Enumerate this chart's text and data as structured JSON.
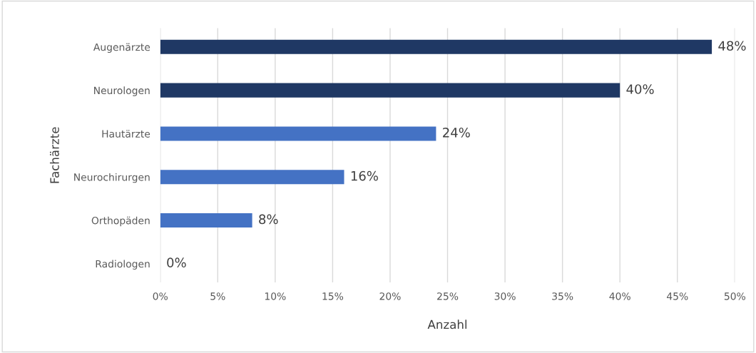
{
  "chart_data": {
    "type": "bar",
    "orientation": "horizontal",
    "xlabel": "Anzahl",
    "ylabel": "Fachärzte",
    "categories": [
      "Augenärzte",
      "Neurologen",
      "Hautärzte",
      "Neurochirurgen",
      "Orthopäden",
      "Radiologen"
    ],
    "values": [
      48,
      40,
      24,
      16,
      8,
      0
    ],
    "colors": [
      "#1f3864",
      "#1f3864",
      "#4472c4",
      "#4472c4",
      "#4472c4",
      "#4472c4"
    ],
    "value_labels": [
      "48%",
      "40%",
      "24%",
      "16%",
      "8%",
      "0%"
    ],
    "xlim": [
      0,
      50
    ],
    "xticks": [
      {
        "value": 0,
        "label": "0%"
      },
      {
        "value": 5,
        "label": "5%"
      },
      {
        "value": 10,
        "label": "10%"
      },
      {
        "value": 15,
        "label": "15%"
      },
      {
        "value": 20,
        "label": "20%"
      },
      {
        "value": 25,
        "label": "25%"
      },
      {
        "value": 30,
        "label": "30%"
      },
      {
        "value": 35,
        "label": "35%"
      },
      {
        "value": 40,
        "label": "40%"
      },
      {
        "value": 45,
        "label": "45%"
      },
      {
        "value": 50,
        "label": "50%"
      }
    ],
    "grid": "x"
  }
}
